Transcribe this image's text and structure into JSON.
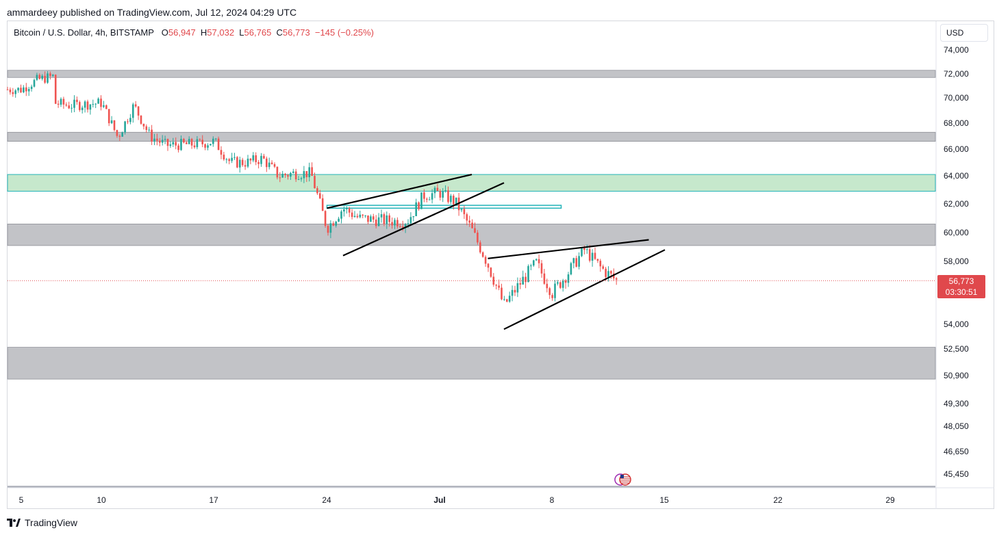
{
  "header": {
    "text": "ammardeey published on TradingView.com, Jul 12, 2024 04:29 UTC"
  },
  "legend": {
    "symbol": "Bitcoin / U.S. Dollar, 4h, BITSTAMP",
    "open_label": "O",
    "open": "56,947",
    "high_label": "H",
    "high": "57,032",
    "low_label": "L",
    "low": "56,765",
    "close_label": "C",
    "close": "56,773",
    "change": "−145 (−0.25%)"
  },
  "price_axis": {
    "currency": "USD",
    "ticks": [
      "74,000",
      "72,000",
      "70,000",
      "68,000",
      "66,000",
      "64,000",
      "62,000",
      "60,000",
      "58,000",
      "54,000",
      "52,500",
      "50,900",
      "49,300",
      "48,050",
      "46,650",
      "45,450"
    ],
    "last_price": "56,773",
    "countdown": "03:30:51"
  },
  "time_axis": {
    "ticks": [
      "5",
      "10",
      "17",
      "24",
      "Jul",
      "8",
      "15",
      "22",
      "29"
    ]
  },
  "footer": {
    "brand": "TradingView"
  },
  "colors": {
    "up": "#26a69a",
    "down": "#ef5350",
    "zone_gray": "#c2c3c7",
    "zone_green": "#c6e8cc",
    "zone_border_teal": "#22b3b8",
    "price_red": "#e0484c"
  },
  "chart_data": {
    "type": "candlestick",
    "symbol": "BTCUSD",
    "timeframe": "4h",
    "x_range": [
      "Jun 5",
      "Jul 29"
    ],
    "ylim": [
      45000,
      75000
    ],
    "y_scale": "log",
    "zones": [
      {
        "color": "gray",
        "from": 71700,
        "to": 72300
      },
      {
        "color": "gray",
        "from": 66600,
        "to": 67300
      },
      {
        "color": "green",
        "from": 62900,
        "to": 64100
      },
      {
        "color": "teal-outline",
        "from": 61700,
        "to": 61900
      },
      {
        "color": "gray",
        "from": 59100,
        "to": 60600
      },
      {
        "color": "gray",
        "from": 50700,
        "to": 52600
      }
    ],
    "trendlines": [
      {
        "pattern": "rising-wedge-1-upper",
        "from": [
          "Jun 24",
          61700
        ],
        "to": [
          "Jul 3",
          64100
        ]
      },
      {
        "pattern": "rising-wedge-1-lower",
        "from": [
          "Jun 25",
          58400
        ],
        "to": [
          "Jul 5",
          63500
        ]
      },
      {
        "pattern": "rising-wedge-2-upper",
        "from": [
          "Jul 4",
          58200
        ],
        "to": [
          "Jul 14",
          59500
        ]
      },
      {
        "pattern": "rising-wedge-2-lower",
        "from": [
          "Jul 5",
          53700
        ],
        "to": [
          "Jul 15",
          58800
        ]
      }
    ],
    "price_path": [
      [
        "Jun 5",
        70700
      ],
      [
        "Jun 6",
        71500
      ],
      [
        "Jun 7",
        71800
      ],
      [
        "Jun 7",
        69600
      ],
      [
        "Jun 8",
        69400
      ],
      [
        "Jun 10",
        69600
      ],
      [
        "Jun 11",
        66900
      ],
      [
        "Jun 12",
        69400
      ],
      [
        "Jun 13",
        67000
      ],
      [
        "Jun 14",
        66300
      ],
      [
        "Jun 16",
        66400
      ],
      [
        "Jun 17",
        66600
      ],
      [
        "Jun 18",
        65000
      ],
      [
        "Jun 19",
        65000
      ],
      [
        "Jun 20",
        65300
      ],
      [
        "Jun 21",
        64000
      ],
      [
        "Jun 22",
        64200
      ],
      [
        "Jun 23",
        64200
      ],
      [
        "Jun 24",
        60300
      ],
      [
        "Jun 25",
        61700
      ],
      [
        "Jun 26",
        61000
      ],
      [
        "Jun 28",
        60800
      ],
      [
        "Jun 29",
        60800
      ],
      [
        "Jun 30",
        62600
      ],
      [
        "Jul 1",
        62800
      ],
      [
        "Jul 2",
        62100
      ],
      [
        "Jul 3",
        60200
      ],
      [
        "Jul 4",
        57800
      ],
      [
        "Jul 5",
        55200
      ],
      [
        "Jul 6",
        56600
      ],
      [
        "Jul 7",
        57900
      ],
      [
        "Jul 8",
        56000
      ],
      [
        "Jul 9",
        57300
      ],
      [
        "Jul 10",
        58800
      ],
      [
        "Jul 11",
        57600
      ],
      [
        "Jul 12",
        56773
      ]
    ]
  }
}
